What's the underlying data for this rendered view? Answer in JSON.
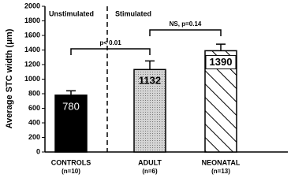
{
  "chart_data": {
    "type": "bar",
    "y_label": "Average STC width (μm)",
    "categories": [
      "CONTROLS",
      "ADULT",
      "NEONATAL"
    ],
    "sample_sizes": [
      "(n=10)",
      "(n=6)",
      "(n=13)"
    ],
    "values": [
      780,
      1132,
      1390
    ],
    "errors": [
      60,
      118,
      90
    ],
    "colors": [
      "#000000",
      "#c8c8c8",
      "#ffffff"
    ],
    "patterns": [
      "solid",
      "dots",
      "hatch"
    ],
    "ylim": [
      0,
      2000
    ],
    "yticks": [
      0,
      200,
      400,
      600,
      800,
      1000,
      1200,
      1400,
      1600,
      1800,
      2000
    ],
    "group_labels": [
      "Unstimulated",
      "Stimulated"
    ],
    "comparisons": [
      {
        "label": "p< 0.01",
        "between": [
          0,
          1
        ]
      },
      {
        "label": "NS, p=0.14",
        "between": [
          1,
          2
        ]
      }
    ]
  }
}
